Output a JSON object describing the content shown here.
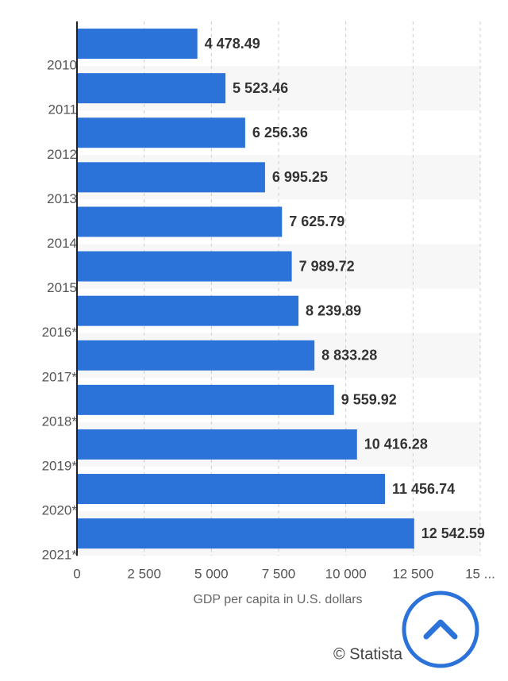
{
  "chart_data": {
    "type": "bar",
    "orientation": "horizontal",
    "x_label": "GDP per capita in U.S. dollars",
    "source": "© Statista",
    "categories": [
      "2010",
      "2011",
      "2012",
      "2013",
      "2014",
      "2015",
      "2016*",
      "2017*",
      "2018*",
      "2019*",
      "2020*",
      "2021*"
    ],
    "values": [
      4478.49,
      5523.46,
      6256.36,
      6995.25,
      7625.79,
      7989.72,
      8239.89,
      8833.28,
      9559.92,
      10416.28,
      11456.74,
      12542.59
    ],
    "value_labels": [
      "4 478.49",
      "5 523.46",
      "6 256.36",
      "6 995.25",
      "7 625.79",
      "7 989.72",
      "8 239.89",
      "8 833.28",
      "9 559.92",
      "10 416.28",
      "11 456.74",
      "12 542.59"
    ],
    "color": "#2b72d9",
    "xlim": [
      0,
      15000
    ],
    "xticks": [
      0,
      {
        "value": 2500,
        "label": "2 500"
      },
      {
        "value": 5000,
        "label": "5 000"
      },
      {
        "value": 7500,
        "label": "7 500"
      },
      {
        "value": 10000,
        "label": "10 000"
      },
      {
        "value": 12500,
        "label": "12 500"
      },
      {
        "value": 15000,
        "label": "15 ..."
      }
    ],
    "grid": true
  }
}
